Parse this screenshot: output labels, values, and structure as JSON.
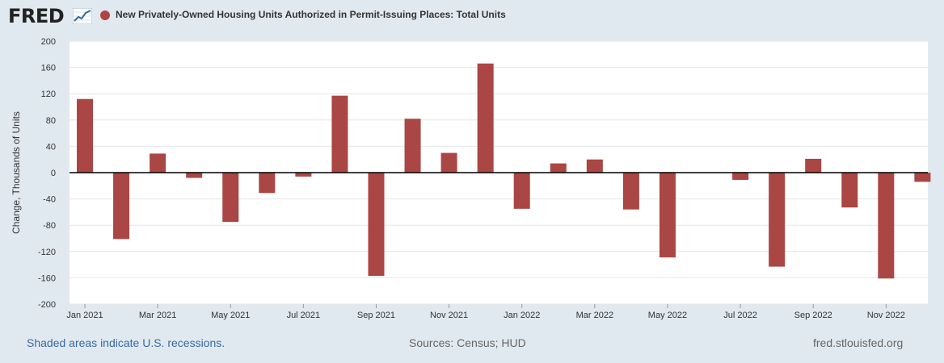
{
  "header": {
    "logo_text": "FRED",
    "logo_icon": "line-chart-icon"
  },
  "chart_data": {
    "type": "bar",
    "title": "New Privately-Owned Housing Units Authorized in Permit-Issuing Places: Total Units",
    "ylabel": "Change, Thousands of Units",
    "xlabel": "",
    "ylim": [
      -200,
      200
    ],
    "yticks": [
      200,
      160,
      120,
      80,
      40,
      0,
      -40,
      -80,
      -120,
      -160,
      -200
    ],
    "color": "#aa4643",
    "grid": true,
    "legend": "top-left",
    "categories": [
      "Jan 2021",
      "Feb 2021",
      "Mar 2021",
      "Apr 2021",
      "May 2021",
      "Jun 2021",
      "Jul 2021",
      "Aug 2021",
      "Sep 2021",
      "Oct 2021",
      "Nov 2021",
      "Dec 2021",
      "Jan 2022",
      "Feb 2022",
      "Mar 2022",
      "Apr 2022",
      "May 2022",
      "Jun 2022",
      "Jul 2022",
      "Aug 2022",
      "Sep 2022",
      "Oct 2022",
      "Nov 2022",
      "Dec 2022"
    ],
    "values": [
      112,
      -101,
      29,
      -8,
      -75,
      -31,
      -6,
      117,
      -157,
      82,
      30,
      166,
      -55,
      14,
      20,
      -56,
      -129,
      0,
      -11,
      -143,
      21,
      -53,
      -161,
      -14
    ],
    "xtick_labels": [
      "Jan 2021",
      "Mar 2021",
      "May 2021",
      "Jul 2021",
      "Sep 2021",
      "Nov 2021",
      "Jan 2022",
      "Mar 2022",
      "May 2022",
      "Jul 2022",
      "Sep 2022",
      "Nov 2022"
    ]
  },
  "footer": {
    "recession_note": "Shaded areas indicate U.S. recessions.",
    "sources": "Sources: Census; HUD",
    "site": "fred.stlouisfed.org"
  }
}
